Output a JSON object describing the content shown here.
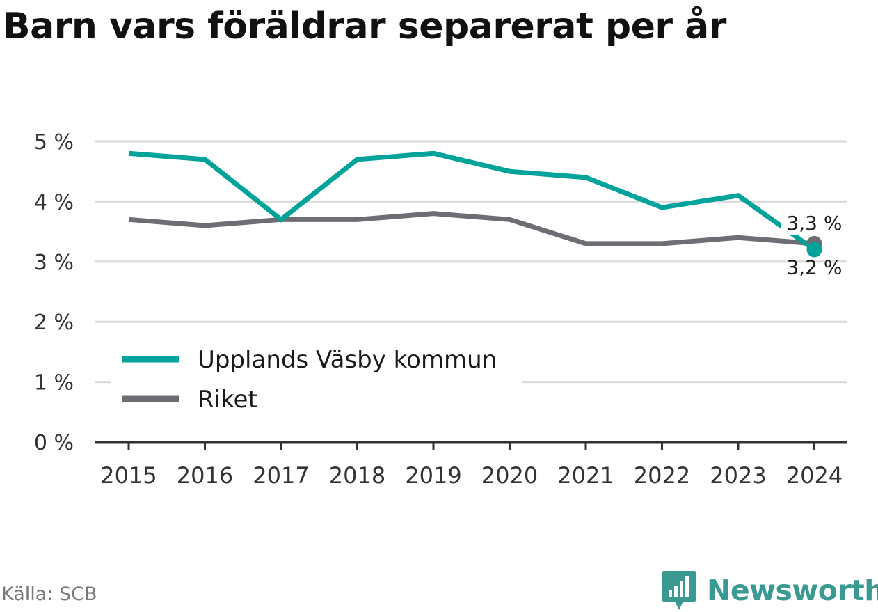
{
  "title": "Barn vars föräldrar separerat per år",
  "source": "Källa: SCB",
  "brand": "Newsworthy",
  "colors": {
    "series_1": "#00a39a",
    "series_2": "#6e6d73",
    "grid": "#d9d9d9",
    "axis": "#333333",
    "brand": "#3a9a91"
  },
  "chart_data": {
    "type": "line",
    "x": [
      "2015",
      "2016",
      "2017",
      "2018",
      "2019",
      "2020",
      "2021",
      "2022",
      "2023",
      "2024"
    ],
    "series": [
      {
        "name": "Upplands Väsby kommun",
        "color": "#00a39a",
        "values": [
          4.8,
          4.7,
          3.7,
          4.7,
          4.8,
          4.5,
          4.4,
          3.9,
          4.1,
          3.2
        ],
        "end_label": "3,2 %"
      },
      {
        "name": "Riket",
        "color": "#6e6d73",
        "values": [
          3.7,
          3.6,
          3.7,
          3.7,
          3.8,
          3.7,
          3.3,
          3.3,
          3.4,
          3.3
        ],
        "end_label": "3,3 %"
      }
    ],
    "yticks": [
      {
        "value": 0,
        "label": "0 %"
      },
      {
        "value": 1,
        "label": "1 %"
      },
      {
        "value": 2,
        "label": "2 %"
      },
      {
        "value": 3,
        "label": "3 %"
      },
      {
        "value": 4,
        "label": "4 %"
      },
      {
        "value": 5,
        "label": "5 %"
      }
    ],
    "ylim": [
      0,
      5
    ],
    "grid": true,
    "legend_position": "bottom-left"
  }
}
